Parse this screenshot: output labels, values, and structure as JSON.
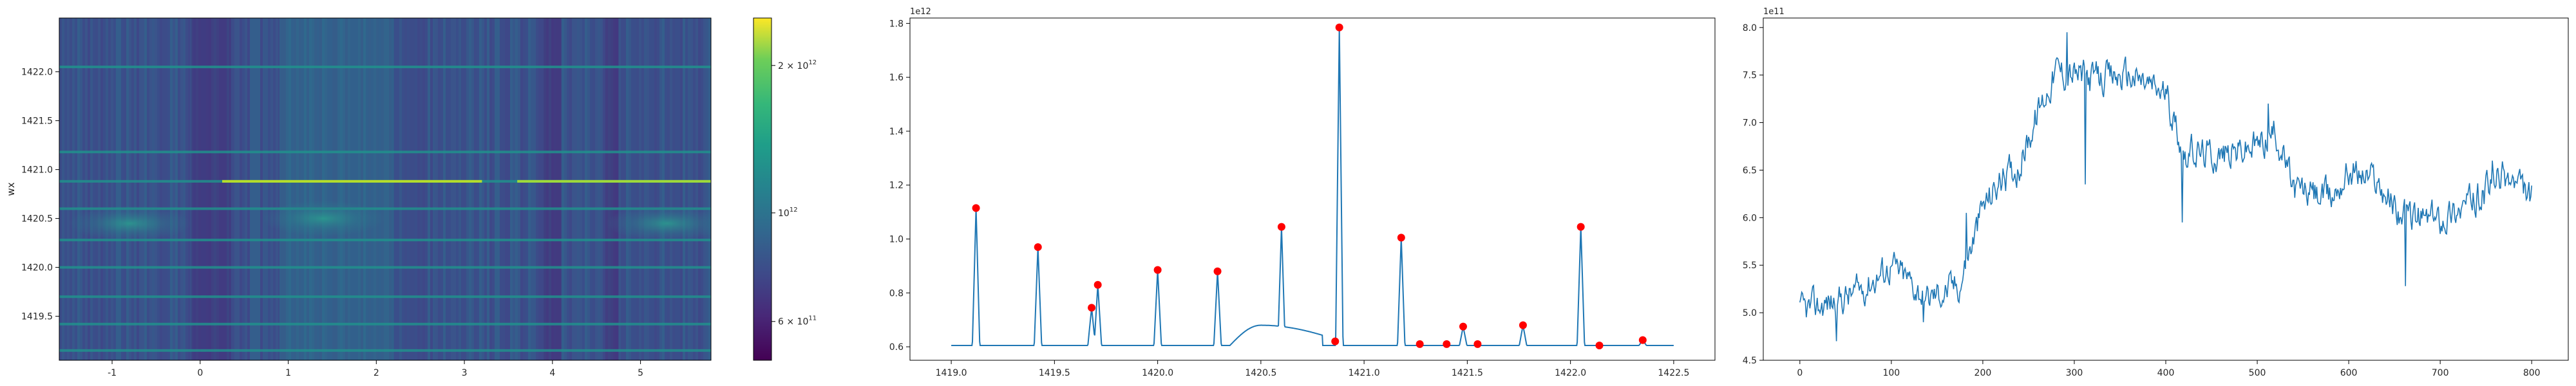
{
  "chart_data": [
    {
      "type": "heatmap",
      "title": "",
      "xlabel": "",
      "ylabel": "wx",
      "xlim": [
        -1.6,
        5.8
      ],
      "ylim": [
        1419.05,
        1422.55
      ],
      "xticks": [
        -1,
        0,
        1,
        2,
        3,
        4,
        5
      ],
      "yticks": [
        1419.5,
        1420.0,
        1420.5,
        1421.0,
        1421.5,
        1422.0
      ],
      "colormap": "viridis",
      "colorbar": {
        "scale": "log",
        "range": [
          500000000000,
          2500000000000
        ],
        "ticks": [
          {
            "value": 2000000000000,
            "label": "2 × 10^12",
            "mant": "2 × 10",
            "exp": "12"
          },
          {
            "value": 1000000000000,
            "label": "10^12",
            "mant": "10",
            "exp": "12"
          },
          {
            "value": 600000000000,
            "label": "6 × 10^11",
            "mant": "6 × 10",
            "exp": "11"
          }
        ]
      },
      "bright_rows": [
        1419.15,
        1419.42,
        1419.7,
        1420.0,
        1420.28,
        1420.6,
        1420.88,
        1421.18,
        1422.05
      ],
      "peak_row": 1420.88,
      "blobs": [
        {
          "x": -0.8,
          "y": 1420.45
        },
        {
          "x": 1.4,
          "y": 1420.5
        },
        {
          "x": 5.3,
          "y": 1420.45
        }
      ]
    },
    {
      "type": "line",
      "title": "",
      "xlabel": "",
      "ylabel": "",
      "offset_label": "1e12",
      "xlim": [
        1418.8,
        1422.7
      ],
      "ylim": [
        0.55,
        1.82
      ],
      "xticks": [
        "1419.0",
        "1419.5",
        "1420.0",
        "1420.5",
        "1421.0",
        "1421.5",
        "1422.0",
        "1422.5"
      ],
      "yticks": [
        "0.6",
        "0.8",
        "1.0",
        "1.2",
        "1.4",
        "1.6",
        "1.8"
      ],
      "series_color": "#1f77b4",
      "marker_color": "#ff0000",
      "baseline": 0.605,
      "peaks": [
        {
          "x": 1419.12,
          "y": 1.115
        },
        {
          "x": 1419.42,
          "y": 0.97
        },
        {
          "x": 1419.68,
          "y": 0.745
        },
        {
          "x": 1419.71,
          "y": 0.83
        },
        {
          "x": 1420.0,
          "y": 0.885
        },
        {
          "x": 1420.29,
          "y": 0.88
        },
        {
          "x": 1420.6,
          "y": 1.045
        },
        {
          "x": 1420.88,
          "y": 1.785
        },
        {
          "x": 1421.18,
          "y": 1.005
        },
        {
          "x": 1421.48,
          "y": 0.675
        },
        {
          "x": 1421.77,
          "y": 0.68
        },
        {
          "x": 1422.05,
          "y": 1.045
        },
        {
          "x": 1422.35,
          "y": 0.625
        }
      ],
      "minor_markers": [
        {
          "x": 1420.86,
          "y": 0.62
        },
        {
          "x": 1421.27,
          "y": 0.61
        },
        {
          "x": 1421.4,
          "y": 0.61
        },
        {
          "x": 1421.55,
          "y": 0.61
        },
        {
          "x": 1422.14,
          "y": 0.605
        }
      ],
      "hump": {
        "x_start": 1420.35,
        "x_peak": 1420.5,
        "x_end": 1420.8,
        "y_peak": 0.68
      }
    },
    {
      "type": "line",
      "title": "",
      "xlabel": "",
      "ylabel": "",
      "offset_label": "1e11",
      "xlim": [
        -40,
        840
      ],
      "ylim": [
        4.5,
        8.1
      ],
      "xticks": [
        "0",
        "100",
        "200",
        "300",
        "400",
        "500",
        "600",
        "700",
        "800"
      ],
      "yticks": [
        "4.5",
        "5.0",
        "5.5",
        "6.0",
        "6.5",
        "7.0",
        "7.5",
        "8.0"
      ],
      "series_color": "#1f77b4",
      "n_points": 800,
      "trend": [
        {
          "x": 0,
          "y": 5.0
        },
        {
          "x": 60,
          "y": 5.2
        },
        {
          "x": 100,
          "y": 5.5
        },
        {
          "x": 140,
          "y": 5.15
        },
        {
          "x": 175,
          "y": 5.3
        },
        {
          "x": 200,
          "y": 6.1
        },
        {
          "x": 220,
          "y": 6.4
        },
        {
          "x": 240,
          "y": 6.55
        },
        {
          "x": 260,
          "y": 7.1
        },
        {
          "x": 280,
          "y": 7.55
        },
        {
          "x": 300,
          "y": 7.5
        },
        {
          "x": 330,
          "y": 7.45
        },
        {
          "x": 360,
          "y": 7.5
        },
        {
          "x": 400,
          "y": 7.3
        },
        {
          "x": 420,
          "y": 6.7
        },
        {
          "x": 460,
          "y": 6.65
        },
        {
          "x": 500,
          "y": 6.75
        },
        {
          "x": 520,
          "y": 6.9
        },
        {
          "x": 540,
          "y": 6.3
        },
        {
          "x": 580,
          "y": 6.2
        },
        {
          "x": 600,
          "y": 6.5
        },
        {
          "x": 630,
          "y": 6.4
        },
        {
          "x": 660,
          "y": 6.0
        },
        {
          "x": 700,
          "y": 6.0
        },
        {
          "x": 740,
          "y": 6.2
        },
        {
          "x": 770,
          "y": 6.45
        },
        {
          "x": 800,
          "y": 6.2
        }
      ],
      "spikes": [
        {
          "x": 40,
          "y": 4.7
        },
        {
          "x": 135,
          "y": 4.9
        },
        {
          "x": 182,
          "y": 6.05
        },
        {
          "x": 292,
          "y": 7.95
        },
        {
          "x": 312,
          "y": 6.35
        },
        {
          "x": 418,
          "y": 5.95
        },
        {
          "x": 512,
          "y": 7.2
        },
        {
          "x": 662,
          "y": 5.28
        },
        {
          "x": 757,
          "y": 6.6
        }
      ]
    }
  ]
}
